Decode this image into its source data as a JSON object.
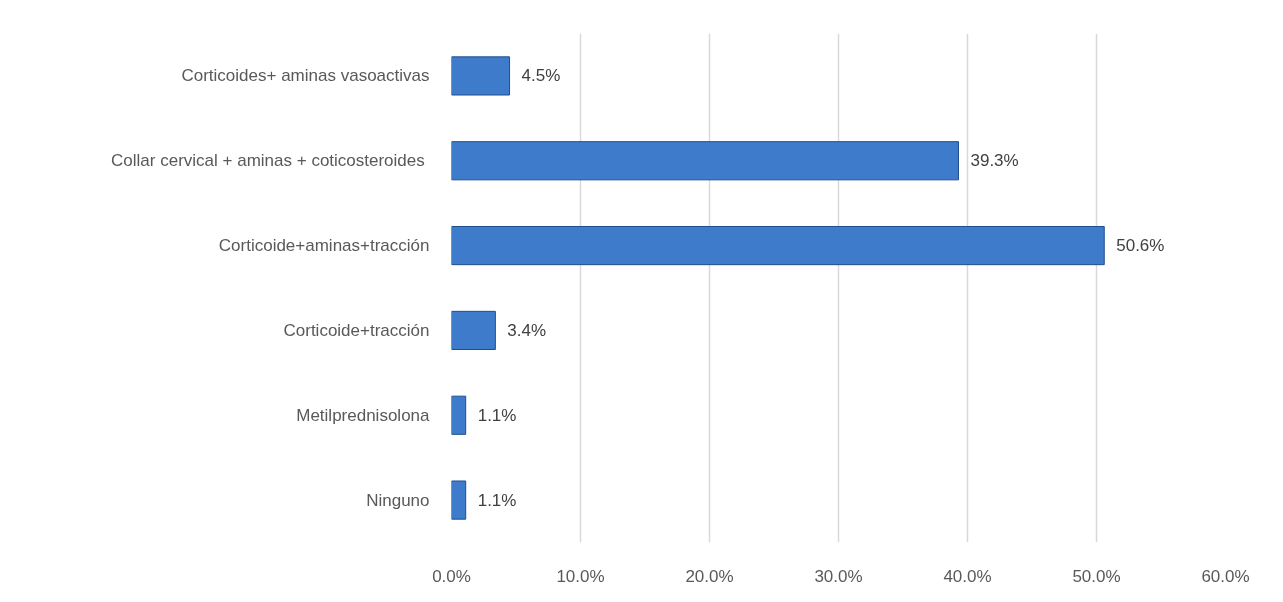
{
  "chart_data": {
    "type": "bar",
    "orientation": "horizontal",
    "categories": [
      "Corticoides+ aminas vasoactivas",
      "Collar cervical + aminas +  coticosteroides",
      "Corticoide+aminas+tracción",
      "Corticoide+tracción",
      "Metilprednisolona",
      "Ninguno"
    ],
    "values": [
      4.5,
      39.3,
      50.6,
      3.4,
      1.1,
      1.1
    ],
    "value_labels": [
      "4.5%",
      "39.3%",
      "50.6%",
      "3.4%",
      "1.1%",
      "1.1%"
    ],
    "color": "#3e7ccb",
    "xlim": [
      0,
      60
    ],
    "xticks": [
      {
        "value": 0,
        "label": "0.0%"
      },
      {
        "value": 10,
        "label": "10.0%"
      },
      {
        "value": 20,
        "label": "20.0%"
      },
      {
        "value": 30,
        "label": "30.0%"
      },
      {
        "value": 40,
        "label": "40.0%"
      },
      {
        "value": 50,
        "label": "50.0%"
      },
      {
        "value": 60,
        "label": "60.0%"
      }
    ],
    "grid": "x"
  }
}
